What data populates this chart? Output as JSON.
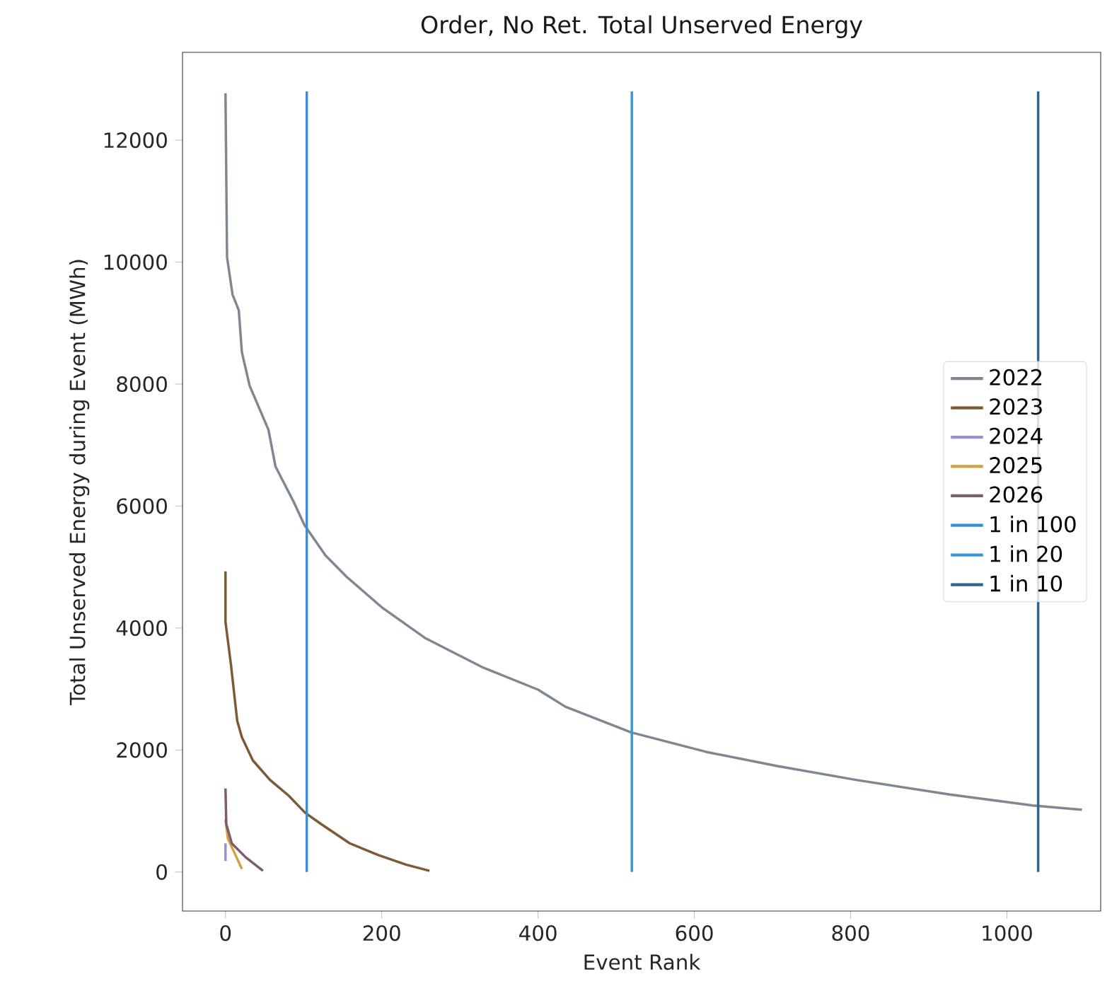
{
  "chart_data": {
    "type": "line",
    "title": "Order, No Ret. Total Unserved Energy",
    "xlabel": "Event Rank",
    "ylabel": "Total Unserved Energy during Event (MWh)",
    "xlim": [
      -55,
      1120
    ],
    "ylim": [
      -640,
      13440
    ],
    "xticks": [
      0,
      200,
      400,
      600,
      800,
      1000
    ],
    "yticks": [
      0,
      2000,
      4000,
      6000,
      8000,
      10000,
      12000
    ],
    "grid": false,
    "legend": "right",
    "marker": "none",
    "line_style": "solid",
    "series": [
      {
        "name": "2022",
        "color": "#7f8793",
        "x": [
          0,
          2,
          9,
          17,
          21,
          31,
          55,
          64,
          88,
          101,
          128,
          155,
          201,
          255,
          330,
          400,
          435,
          519,
          615,
          705,
          807,
          927,
          1033,
          1096
        ],
        "values": [
          12770,
          10080,
          9470,
          9210,
          8520,
          7970,
          7250,
          6650,
          6050,
          5690,
          5190,
          4840,
          4330,
          3840,
          3350,
          2990,
          2710,
          2290,
          1970,
          1740,
          1510,
          1270,
          1090,
          1020
        ]
      },
      {
        "name": "2023",
        "color": "#7b5a36",
        "x": [
          0,
          0,
          7,
          15,
          21,
          35,
          57,
          81,
          102,
          123,
          159,
          195,
          231,
          261
        ],
        "values": [
          4930,
          4100,
          3400,
          2480,
          2210,
          1830,
          1510,
          1250,
          970,
          780,
          470,
          280,
          120,
          20
        ]
      },
      {
        "name": "2024",
        "color": "#9b8fd0",
        "x": [
          0,
          0
        ],
        "values": [
          470,
          180
        ]
      },
      {
        "name": "2025",
        "color": "#d4a046",
        "x": [
          0,
          3,
          21
        ],
        "values": [
          860,
          550,
          50
        ]
      },
      {
        "name": "2026",
        "color": "#7a5e68",
        "x": [
          0,
          1,
          8,
          26,
          48
        ],
        "values": [
          1370,
          790,
          470,
          240,
          20
        ]
      },
      {
        "name": "1 in 100",
        "color": "#3a8fd0",
        "x": [
          104,
          104
        ],
        "values": [
          0,
          12800
        ]
      },
      {
        "name": "1 in 20",
        "color": "#3a97d4",
        "x": [
          520,
          520
        ],
        "values": [
          0,
          12800
        ]
      },
      {
        "name": "1 in 10",
        "color": "#2e6591",
        "x": [
          1040,
          1040
        ],
        "values": [
          0,
          12800
        ]
      }
    ]
  }
}
